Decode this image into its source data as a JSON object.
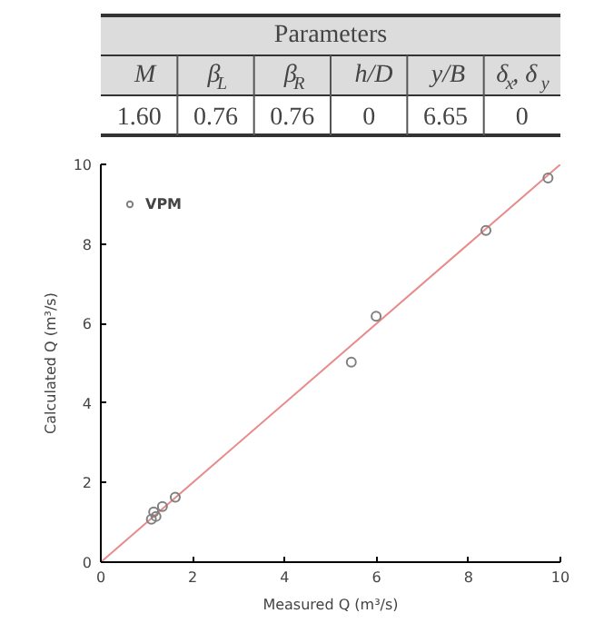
{
  "chart_data": [
    {
      "type": "other",
      "title": "Parameters",
      "categories": [
        "M",
        "β$_{L}$",
        "β$_{R}$",
        "h/D",
        "y/B",
        "δ$_{x}$, δ$_{y}$"
      ],
      "annotations": [
        "1.60",
        "0.76",
        "0.76",
        "0",
        "6.65",
        "0"
      ]
    },
    {
      "type": "scatter",
      "xlabel": "Measured Q (m³/s)",
      "ylabel": "Calculated Q (m³/s)",
      "xlim": [
        0,
        10
      ],
      "ylim": [
        0,
        10
      ],
      "xticks": [
        0,
        2,
        4,
        6,
        8,
        10
      ],
      "yticks": [
        0,
        2,
        4,
        6,
        8,
        10
      ],
      "grid": false,
      "legend": "top left",
      "marker": "circle",
      "series": [
        {
          "name": "VPM",
          "color": "#808080",
          "x": [
            9.73,
            8.38,
            5.99,
            5.45,
            1.62,
            1.34,
            1.2,
            1.15,
            1.1
          ],
          "values": [
            9.66,
            8.34,
            6.18,
            5.03,
            1.63,
            1.4,
            1.15,
            1.26,
            1.08
          ]
        },
        {
          "type": "line",
          "color": "#e88a8a",
          "line_style": "solid",
          "marker": "none",
          "x": [
            0,
            10
          ],
          "values": [
            0,
            10
          ]
        }
      ]
    }
  ]
}
